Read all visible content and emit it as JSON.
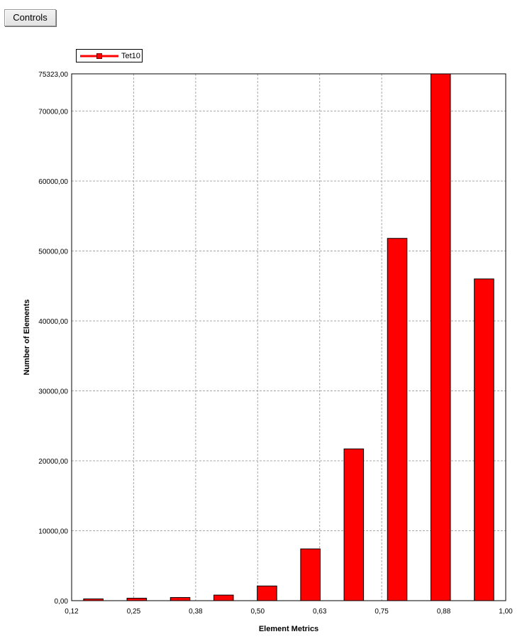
{
  "toolbar": {
    "controls_label": "Controls"
  },
  "colors": {
    "bar_fill": "#ff0000",
    "bar_stroke": "#000000",
    "grid": "#a8a8a8",
    "plot_border": "#000000"
  },
  "chart_data": {
    "type": "bar",
    "xlabel": "Element Metrics",
    "ylabel": "Number of Elements",
    "xlim": [
      0.125,
      1.0
    ],
    "ylim": [
      0,
      75323
    ],
    "grid": true,
    "legend_placement": "top-left",
    "legend": [
      "Tet10"
    ],
    "x_tick_labels": [
      "0,12",
      "0,25",
      "0,38",
      "0,50",
      "0,63",
      "0,75",
      "0,88",
      "1,00"
    ],
    "y_tick_labels": [
      "0,00",
      "10000,00",
      "20000,00",
      "30000,00",
      "40000,00",
      "50000,00",
      "60000,00",
      "70000,00",
      "75323,00"
    ],
    "y_ticks": [
      0,
      10000,
      20000,
      30000,
      40000,
      50000,
      60000,
      70000,
      75323
    ],
    "series": [
      {
        "name": "Tet10",
        "x": [
          0.1688,
          0.2563,
          0.3438,
          0.4313,
          0.5188,
          0.6063,
          0.6938,
          0.7813,
          0.8688,
          0.9563
        ],
        "values": [
          250,
          350,
          450,
          800,
          2100,
          7400,
          21700,
          51800,
          75323,
          46000
        ]
      }
    ]
  }
}
